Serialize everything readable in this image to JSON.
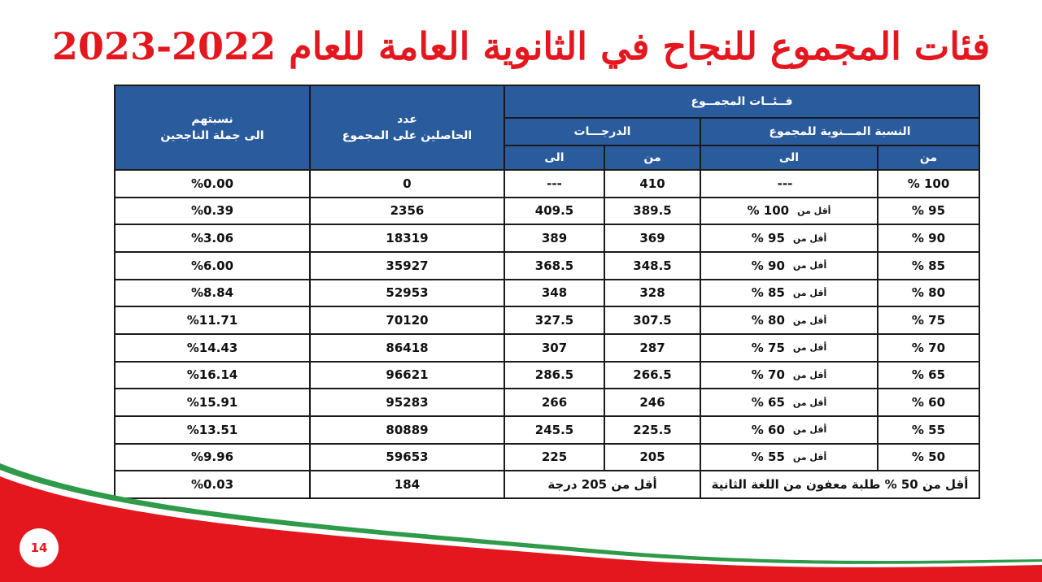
{
  "title": "فئات المجموع للنجاح في الثانوية العامة للعام 2022-2023",
  "header": {
    "ratio": [
      "نسبتهم",
      "الى جملة الناجحين"
    ],
    "count": [
      "عدد",
      "الحاصلين على المجموع"
    ],
    "categories": "فــئــات المجمــوع",
    "scores": "الدرجـــات",
    "percent": "النسبة المـــنوية للمجموع",
    "to": "الى",
    "from": "من"
  },
  "rows": [
    {
      "ratio": "%0.00",
      "count": "0",
      "score_to": "---",
      "score_from": "410",
      "pct_to_a": "---",
      "pct_to_b": "",
      "pct_from": "% 100"
    },
    {
      "ratio": "%0.39",
      "count": "2356",
      "score_to": "409.5",
      "score_from": "389.5",
      "pct_to_a": "% 100",
      "pct_to_b": "أقل من",
      "pct_from": "% 95"
    },
    {
      "ratio": "%3.06",
      "count": "18319",
      "score_to": "389",
      "score_from": "369",
      "pct_to_a": "% 95",
      "pct_to_b": "أقل من",
      "pct_from": "% 90"
    },
    {
      "ratio": "%6.00",
      "count": "35927",
      "score_to": "368.5",
      "score_from": "348.5",
      "pct_to_a": "% 90",
      "pct_to_b": "أقل من",
      "pct_from": "% 85"
    },
    {
      "ratio": "%8.84",
      "count": "52953",
      "score_to": "348",
      "score_from": "328",
      "pct_to_a": "% 85",
      "pct_to_b": "أقل من",
      "pct_from": "% 80"
    },
    {
      "ratio": "%11.71",
      "count": "70120",
      "score_to": "327.5",
      "score_from": "307.5",
      "pct_to_a": "% 80",
      "pct_to_b": "أقل من",
      "pct_from": "% 75"
    },
    {
      "ratio": "%14.43",
      "count": "86418",
      "score_to": "307",
      "score_from": "287",
      "pct_to_a": "% 75",
      "pct_to_b": "أقل من",
      "pct_from": "% 70"
    },
    {
      "ratio": "%16.14",
      "count": "96621",
      "score_to": "286.5",
      "score_from": "266.5",
      "pct_to_a": "% 70",
      "pct_to_b": "أقل من",
      "pct_from": "% 65"
    },
    {
      "ratio": "%15.91",
      "count": "95283",
      "score_to": "266",
      "score_from": "246",
      "pct_to_a": "% 65",
      "pct_to_b": "أقل من",
      "pct_from": "% 60"
    },
    {
      "ratio": "%13.51",
      "count": "80889",
      "score_to": "245.5",
      "score_from": "225.5",
      "pct_to_a": "% 60",
      "pct_to_b": "أقل من",
      "pct_from": "% 55"
    },
    {
      "ratio": "%9.96",
      "count": "59653",
      "score_to": "225",
      "score_from": "205",
      "pct_to_a": "% 55",
      "pct_to_b": "أقل من",
      "pct_from": "% 50"
    }
  ],
  "last_row": {
    "ratio": "%0.03",
    "count": "184",
    "scores_note": "أقل من 205 درجة",
    "percent_note": "أقل من 50 % طلبة معفون من اللغة الثانية"
  },
  "page_number": "14",
  "colors": {
    "title": "#e4171f",
    "header_bg": "#2a5b9c",
    "band_red": "#e4171f",
    "band_green": "#2e9a4a"
  }
}
